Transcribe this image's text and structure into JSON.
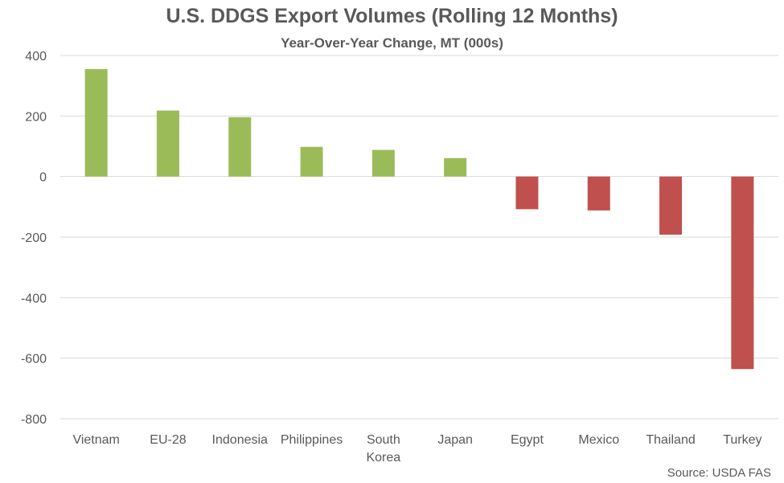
{
  "title": "U.S. DDGS Export Volumes (Rolling 12 Months)",
  "subtitle": "Year-Over-Year Change, MT (000s)",
  "source": "Source: USDA FAS",
  "colors": {
    "positive": "#9bbb59",
    "negative": "#c0504d",
    "grid": "#d9d9d9",
    "text": "#595959"
  },
  "chart_data": {
    "type": "bar",
    "title": "U.S. DDGS Export Volumes (Rolling 12 Months)",
    "subtitle": "Year-Over-Year Change, MT (000s)",
    "categories": [
      "Vietnam",
      "EU-28",
      "Indonesia",
      "Philippines",
      "South Korea",
      "Japan",
      "Egypt",
      "Mexico",
      "Thailand",
      "Turkey"
    ],
    "category_lines": [
      [
        "Vietnam"
      ],
      [
        "EU-28"
      ],
      [
        "Indonesia"
      ],
      [
        "Philippines"
      ],
      [
        "South",
        "Korea"
      ],
      [
        "Japan"
      ],
      [
        "Egypt"
      ],
      [
        "Mexico"
      ],
      [
        "Thailand"
      ],
      [
        "Turkey"
      ]
    ],
    "values": [
      355,
      218,
      196,
      98,
      88,
      61,
      -108,
      -112,
      -192,
      -636
    ],
    "ylim": [
      -800,
      400
    ],
    "yticks": [
      400,
      200,
      0,
      -200,
      -400,
      -600,
      -800
    ],
    "grid": true,
    "legend": "none"
  }
}
